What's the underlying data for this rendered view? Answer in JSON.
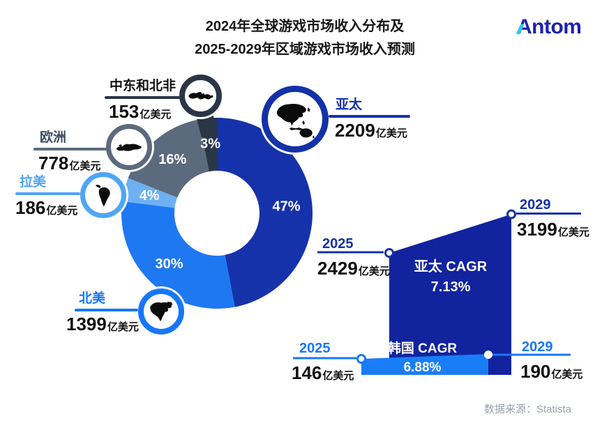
{
  "title": {
    "line1": "2024年全球游戏市场收入分布及",
    "line2": "2025-2029年区域游戏市场收入预测"
  },
  "logo": {
    "text": "Antom"
  },
  "footer": {
    "source_label": "数据来源：Statista"
  },
  "unit": "亿美元",
  "colors": {
    "apac_deep_blue": "#1531A8",
    "north_america_blue": "#1E78F1",
    "latam_light_blue": "#6FB0F3",
    "europe_slate": "#5C6A7E",
    "mena_dark_navy": "#2A3646",
    "korea_band_blue": "#1A7DF8",
    "korea_year_blue": "#1677FA",
    "logo_blue": "#1B23A9",
    "logo_accent_cyan": "#38C6E9",
    "footer_gray": "#9AA1AD"
  },
  "chart_data": [
    {
      "type": "pie",
      "title": "2024年全球游戏市场收入分布",
      "unit": "亿美元",
      "donut": true,
      "slices": [
        {
          "label": "亚太",
          "pct": 47,
          "pct_label": "47%",
          "value": 2209,
          "color": "#1632AB"
        },
        {
          "label": "北美",
          "pct": 30,
          "pct_label": "30%",
          "value": 1399,
          "color": "#1E78F1"
        },
        {
          "label": "拉美",
          "pct": 4,
          "pct_label": "4%",
          "value": 186,
          "color": "#6FB0F3"
        },
        {
          "label": "欧洲",
          "pct": 16,
          "pct_label": "16%",
          "value": 778,
          "color": "#5C6A7E"
        },
        {
          "label": "中东和北非",
          "pct": 3,
          "pct_label": "3%",
          "value": 153,
          "color": "#2A3646"
        }
      ]
    },
    {
      "type": "area",
      "title": "2025-2029年区域游戏市场收入预测",
      "unit": "亿美元",
      "series": [
        {
          "name": "亚太",
          "cagr_title": "亚太 CAGR",
          "cagr_value": "7.13%",
          "start_year": "2025",
          "start_value": 2429,
          "end_year": "2029",
          "end_value": 3199,
          "color": "#12239E",
          "accent": "#1531A8"
        },
        {
          "name": "韩国",
          "cagr_title": "韩国 CAGR",
          "cagr_value": "6.88%",
          "start_year": "2025",
          "start_value": 146,
          "end_year": "2029",
          "end_value": 190,
          "color": "#1A7DF8",
          "accent": "#1677FA"
        }
      ]
    }
  ]
}
